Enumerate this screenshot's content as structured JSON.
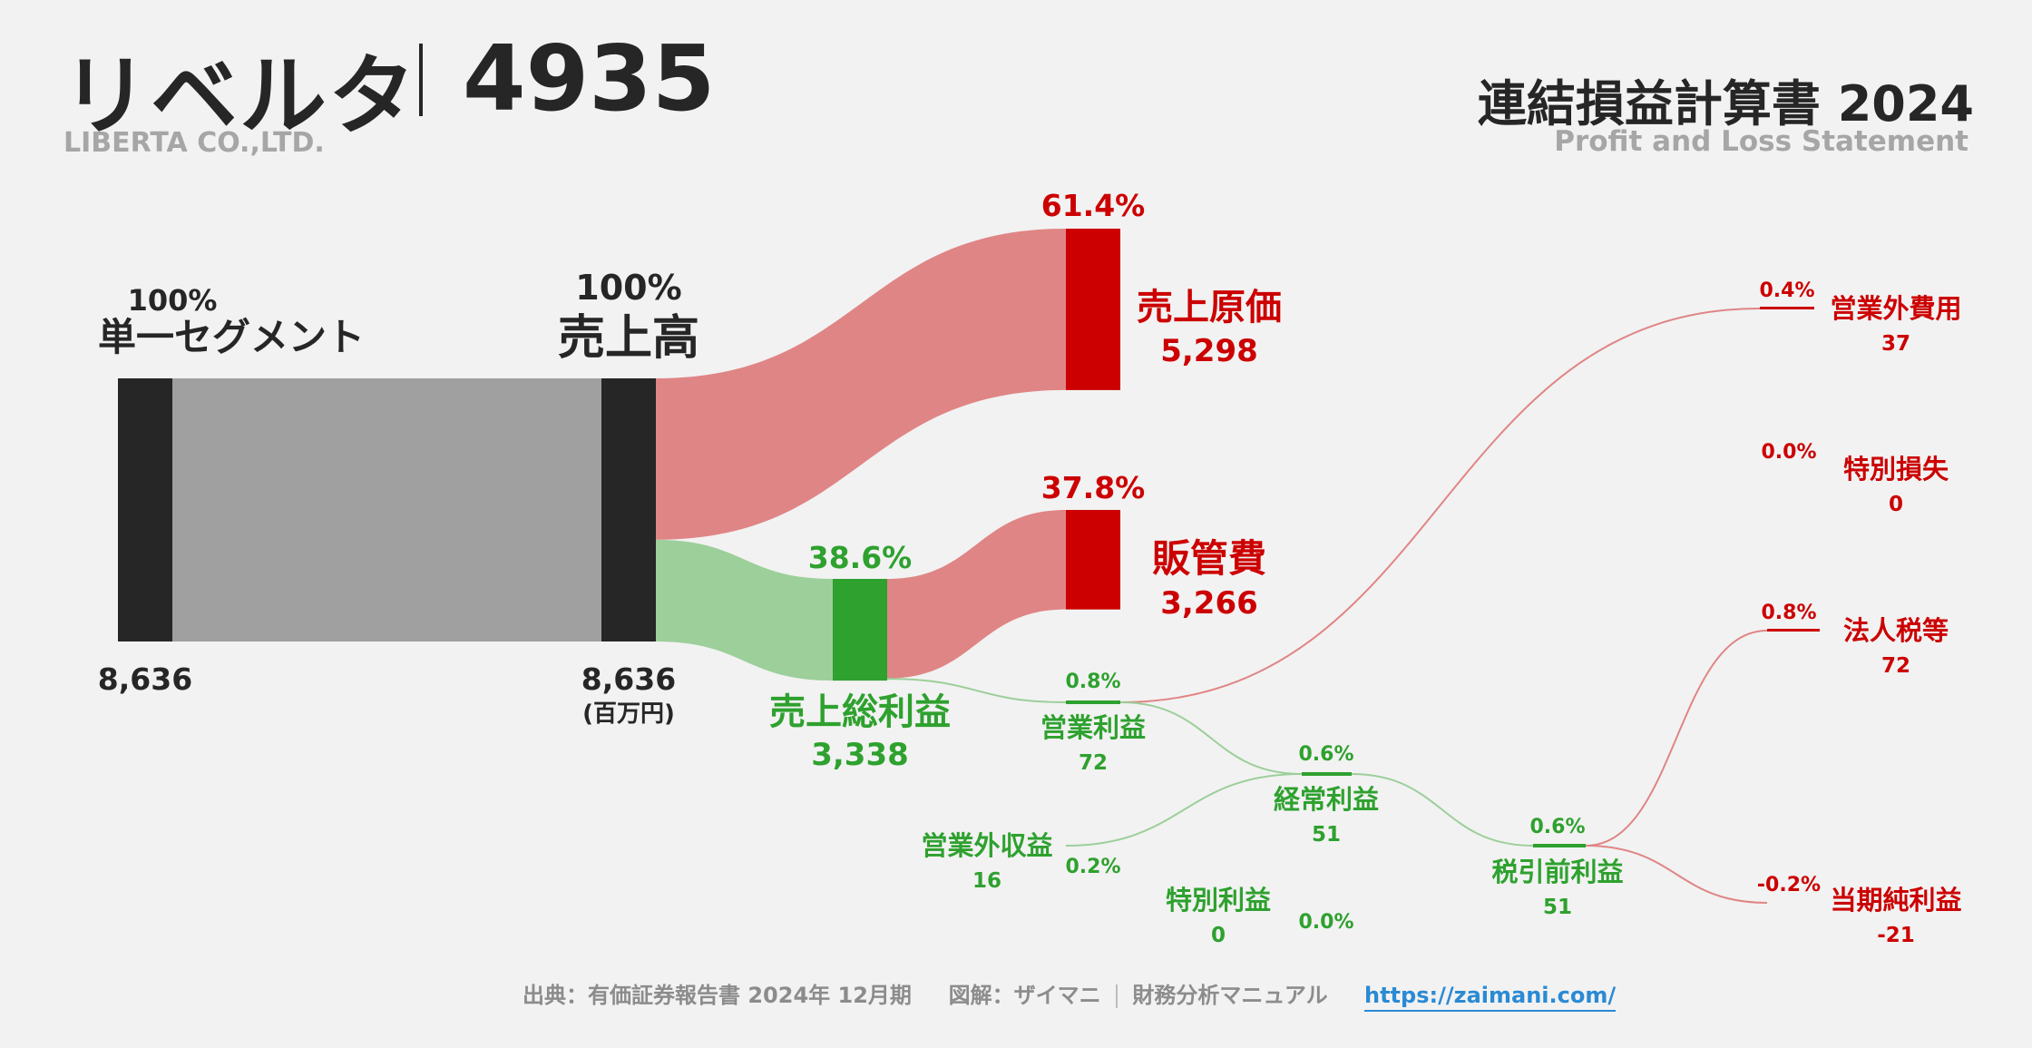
{
  "header": {
    "company_name": "リベルタ",
    "ticker": "4935",
    "company_en": "LIBERTA CO.,LTD.",
    "statement_title": "連結損益計算書 2024",
    "statement_en": "Profit and Loss Statement"
  },
  "footer": {
    "source": "出典：有価証券報告書 2024年 12月期",
    "credit": "図解：ザイマニ",
    "site_name": "財務分析マニュアル",
    "url": "https://zaimani.com/"
  },
  "colors": {
    "dark": "#262626",
    "segment_flow": "#a0a0a0",
    "profit": "#2ea12e",
    "profit_flow": "#9ccf9a",
    "cost": "#cc0000",
    "cost_flow": "#e08585",
    "muted_text": "#a6a6a6",
    "link": "#2a8ad4"
  },
  "chart_data": {
    "type": "sankey",
    "unit": "(百万円)",
    "nodes": [
      {
        "id": "segment",
        "label": "単一セグメント",
        "value": 8636,
        "value_text": "8,636",
        "pct": "100%",
        "category": "revenue"
      },
      {
        "id": "revenue",
        "label": "売上高",
        "value": 8636,
        "value_text": "8,636",
        "pct": "100%",
        "category": "revenue"
      },
      {
        "id": "cogs",
        "label": "売上原価",
        "value": 5298,
        "value_text": "5,298",
        "pct": "61.4%",
        "category": "cost"
      },
      {
        "id": "gross_profit",
        "label": "売上総利益",
        "value": 3338,
        "value_text": "3,338",
        "pct": "38.6%",
        "category": "profit"
      },
      {
        "id": "sga",
        "label": "販管費",
        "value": 3266,
        "value_text": "3,266",
        "pct": "37.8%",
        "category": "cost"
      },
      {
        "id": "operating_profit",
        "label": "営業利益",
        "value": 72,
        "value_text": "72",
        "pct": "0.8%",
        "category": "profit"
      },
      {
        "id": "non_op_income",
        "label": "営業外収益",
        "value": 16,
        "value_text": "16",
        "pct": "0.2%",
        "category": "profit"
      },
      {
        "id": "non_op_expense",
        "label": "営業外費用",
        "value": 37,
        "value_text": "37",
        "pct": "0.4%",
        "category": "cost"
      },
      {
        "id": "ordinary_profit",
        "label": "経常利益",
        "value": 51,
        "value_text": "51",
        "pct": "0.6%",
        "category": "profit"
      },
      {
        "id": "extraordinary_income",
        "label": "特別利益",
        "value": 0,
        "value_text": "0",
        "pct": "0.0%",
        "category": "profit"
      },
      {
        "id": "extraordinary_loss",
        "label": "特別損失",
        "value": 0,
        "value_text": "0",
        "pct": "0.0%",
        "category": "cost"
      },
      {
        "id": "pretax_profit",
        "label": "税引前利益",
        "value": 51,
        "value_text": "51",
        "pct": "0.6%",
        "category": "profit"
      },
      {
        "id": "income_taxes",
        "label": "法人税等",
        "value": 72,
        "value_text": "72",
        "pct": "0.8%",
        "category": "cost"
      },
      {
        "id": "net_income",
        "label": "当期純利益",
        "value": -21,
        "value_text": "-21",
        "pct": "-0.2%",
        "category": "cost"
      }
    ],
    "links": [
      {
        "source": "segment",
        "target": "revenue",
        "value": 8636
      },
      {
        "source": "revenue",
        "target": "cogs",
        "value": 5298
      },
      {
        "source": "revenue",
        "target": "gross_profit",
        "value": 3338
      },
      {
        "source": "gross_profit",
        "target": "sga",
        "value": 3266
      },
      {
        "source": "gross_profit",
        "target": "operating_profit",
        "value": 72
      },
      {
        "source": "operating_profit",
        "target": "non_op_expense",
        "value": 37
      },
      {
        "source": "operating_profit",
        "target": "ordinary_profit",
        "value": 35
      },
      {
        "source": "non_op_income",
        "target": "ordinary_profit",
        "value": 16
      },
      {
        "source": "ordinary_profit",
        "target": "pretax_profit",
        "value": 51
      },
      {
        "source": "pretax_profit",
        "target": "income_taxes",
        "value": 51
      },
      {
        "source": "pretax_profit",
        "target": "net_income",
        "value": 0
      }
    ]
  }
}
